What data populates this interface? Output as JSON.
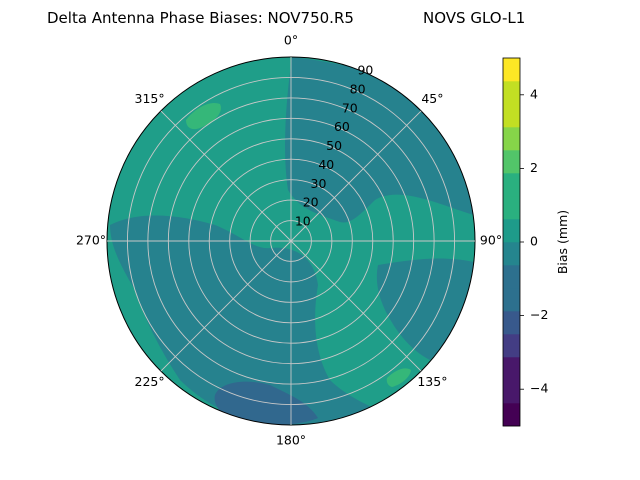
{
  "chart_data": {
    "type": "polar-contour",
    "title_left": "Delta Antenna Phase Biases: NOV750.R5",
    "title_right": "NOVS GLO-L1",
    "angle_ticks": [
      "0°",
      "45°",
      "90°",
      "135°",
      "180°",
      "225°",
      "270°",
      "315°"
    ],
    "radial_ticks": [
      "10",
      "20",
      "30",
      "40",
      "50",
      "60",
      "70",
      "80",
      "90"
    ],
    "radial_range": [
      0,
      90
    ],
    "grid": true,
    "colorbar": {
      "label": "Bias (mm)",
      "range": [
        -5,
        5
      ],
      "ticks": [
        "−4",
        "−2",
        "0",
        "2",
        "4"
      ],
      "levels": [
        -5,
        -4.375,
        -3.75,
        -3.125,
        -2.5,
        -1.875,
        -1.25,
        -0.625,
        0,
        0.625,
        1.25,
        1.875,
        2.5,
        3.125,
        3.75,
        4.375,
        5
      ],
      "colors": [
        "#440154",
        "#48186a",
        "#433d84",
        "#38598c",
        "#2d708e",
        "#25858e",
        "#1e9b8a",
        "#2ab07f",
        "#52c569",
        "#86d549",
        "#c2df23",
        "#fde725"
      ]
    },
    "regions": [
      {
        "name": "background",
        "bias_band": [
          0,
          0.625
        ],
        "color": "#1f9e89"
      },
      {
        "name": "negative-zone-east",
        "bias_band": [
          -0.625,
          0
        ],
        "color": "#26828e"
      },
      {
        "name": "negative-zone-southwest",
        "bias_band": [
          -0.625,
          0
        ],
        "color": "#26828e"
      },
      {
        "name": "negative-zone-south",
        "bias_band": [
          -1.25,
          -0.625
        ],
        "color": "#31688e"
      },
      {
        "name": "positive-patch-northwest",
        "bias_band": [
          1.25,
          1.875
        ],
        "color": "#35b779"
      },
      {
        "name": "positive-patch-southeast",
        "bias_band": [
          1.25,
          1.875
        ],
        "color": "#35b779"
      }
    ]
  }
}
